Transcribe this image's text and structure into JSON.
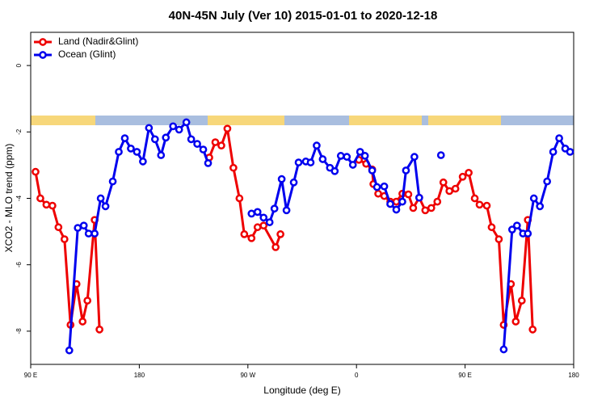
{
  "chart_data": {
    "type": "line",
    "title": "40N-45N July (Ver 10)   2015-01-01 to 2020-12-18",
    "x_label": "Longitude (deg E)",
    "y_label": "XCO2 - MLO trend (ppm)",
    "xlim": [
      90,
      540
    ],
    "ylim": [
      -9,
      1
    ],
    "xticks": [
      {
        "value": 90,
        "label": "90 E"
      },
      180,
      {
        "value": 270,
        "label": "90 W"
      },
      {
        "value": 360,
        "label": "0"
      },
      {
        "value": 450,
        "label": "90 E"
      },
      {
        "value": 540,
        "label": "180"
      }
    ],
    "yticks": [
      -8,
      -6,
      -4,
      -2,
      0
    ],
    "legend": "topleft",
    "series": [
      {
        "name": "Land (Nadir&Glint)",
        "color": "#ee0000",
        "x": [
          94,
          98,
          103,
          108,
          113,
          118,
          123,
          128,
          133,
          137,
          143,
          147,
          null,
          238,
          243,
          248,
          253,
          258,
          263,
          267,
          273,
          278,
          283,
          293,
          297,
          null,
          362,
          368,
          373,
          374,
          378,
          383,
          388,
          393,
          398,
          403,
          407,
          412,
          417,
          422,
          427,
          432,
          437,
          442,
          448,
          453,
          458,
          462,
          468,
          472,
          478,
          482,
          488,
          492,
          497,
          502,
          506
        ],
        "values": [
          -3.2,
          -4.0,
          -4.19,
          -4.22,
          -4.87,
          -5.23,
          -7.81,
          -6.58,
          -7.71,
          -7.08,
          -4.65,
          -7.95,
          null,
          -2.77,
          -2.31,
          -2.41,
          -1.9,
          -3.08,
          -4.0,
          -5.08,
          -5.2,
          -4.87,
          -4.82,
          -5.47,
          -5.08,
          null,
          -2.84,
          -2.96,
          -3.13,
          -3.57,
          -3.86,
          -3.93,
          -4.1,
          -4.1,
          -3.86,
          -3.88,
          -4.29,
          -3.98,
          -4.36,
          -4.29,
          -4.1,
          -3.52,
          -3.78,
          -3.71,
          -3.35,
          -3.23,
          -4.0,
          -4.19,
          -4.22,
          -4.87,
          -5.23,
          -7.81,
          -6.58,
          -7.71,
          -7.08,
          -4.65,
          -7.95
        ]
      },
      {
        "name": "Ocean (Glint)",
        "color": "#0000ee",
        "x": [
          122,
          129,
          134,
          138,
          143,
          148,
          152,
          158,
          163,
          168,
          173,
          178,
          183,
          188,
          193,
          198,
          202,
          208,
          213,
          219,
          223,
          228,
          233,
          237,
          null,
          273,
          278,
          283,
          288,
          292,
          298,
          302,
          308,
          312,
          318,
          322,
          327,
          332,
          338,
          342,
          347,
          352,
          357,
          363,
          367,
          373,
          377,
          383,
          388,
          393,
          398,
          401,
          408,
          412,
          null,
          430,
          null,
          482,
          489,
          493,
          498,
          502,
          507,
          512,
          518,
          523,
          528,
          533,
          537
        ],
        "values": [
          -8.58,
          -4.89,
          -4.82,
          -5.06,
          -5.06,
          -4.0,
          -4.24,
          -3.49,
          -2.6,
          -2.19,
          -2.5,
          -2.6,
          -2.89,
          -1.88,
          -2.22,
          -2.7,
          -2.17,
          -1.83,
          -1.93,
          -1.71,
          -2.22,
          -2.36,
          -2.53,
          -2.94,
          null,
          -4.46,
          -4.41,
          -4.58,
          -4.72,
          -4.31,
          -3.42,
          -4.36,
          -3.52,
          -2.92,
          -2.89,
          -2.92,
          -2.41,
          -2.82,
          -3.08,
          -3.18,
          -2.72,
          -2.75,
          -2.99,
          -2.6,
          -2.72,
          -3.16,
          -3.66,
          -3.64,
          -4.17,
          -4.34,
          -4.1,
          -3.16,
          -2.75,
          -3.98,
          null,
          -2.7,
          null,
          -8.55,
          -4.94,
          -4.82,
          -5.06,
          -5.06,
          -4.0,
          -4.24,
          -3.49,
          -2.6,
          -2.19,
          -2.5,
          -2.6
        ]
      }
    ]
  }
}
